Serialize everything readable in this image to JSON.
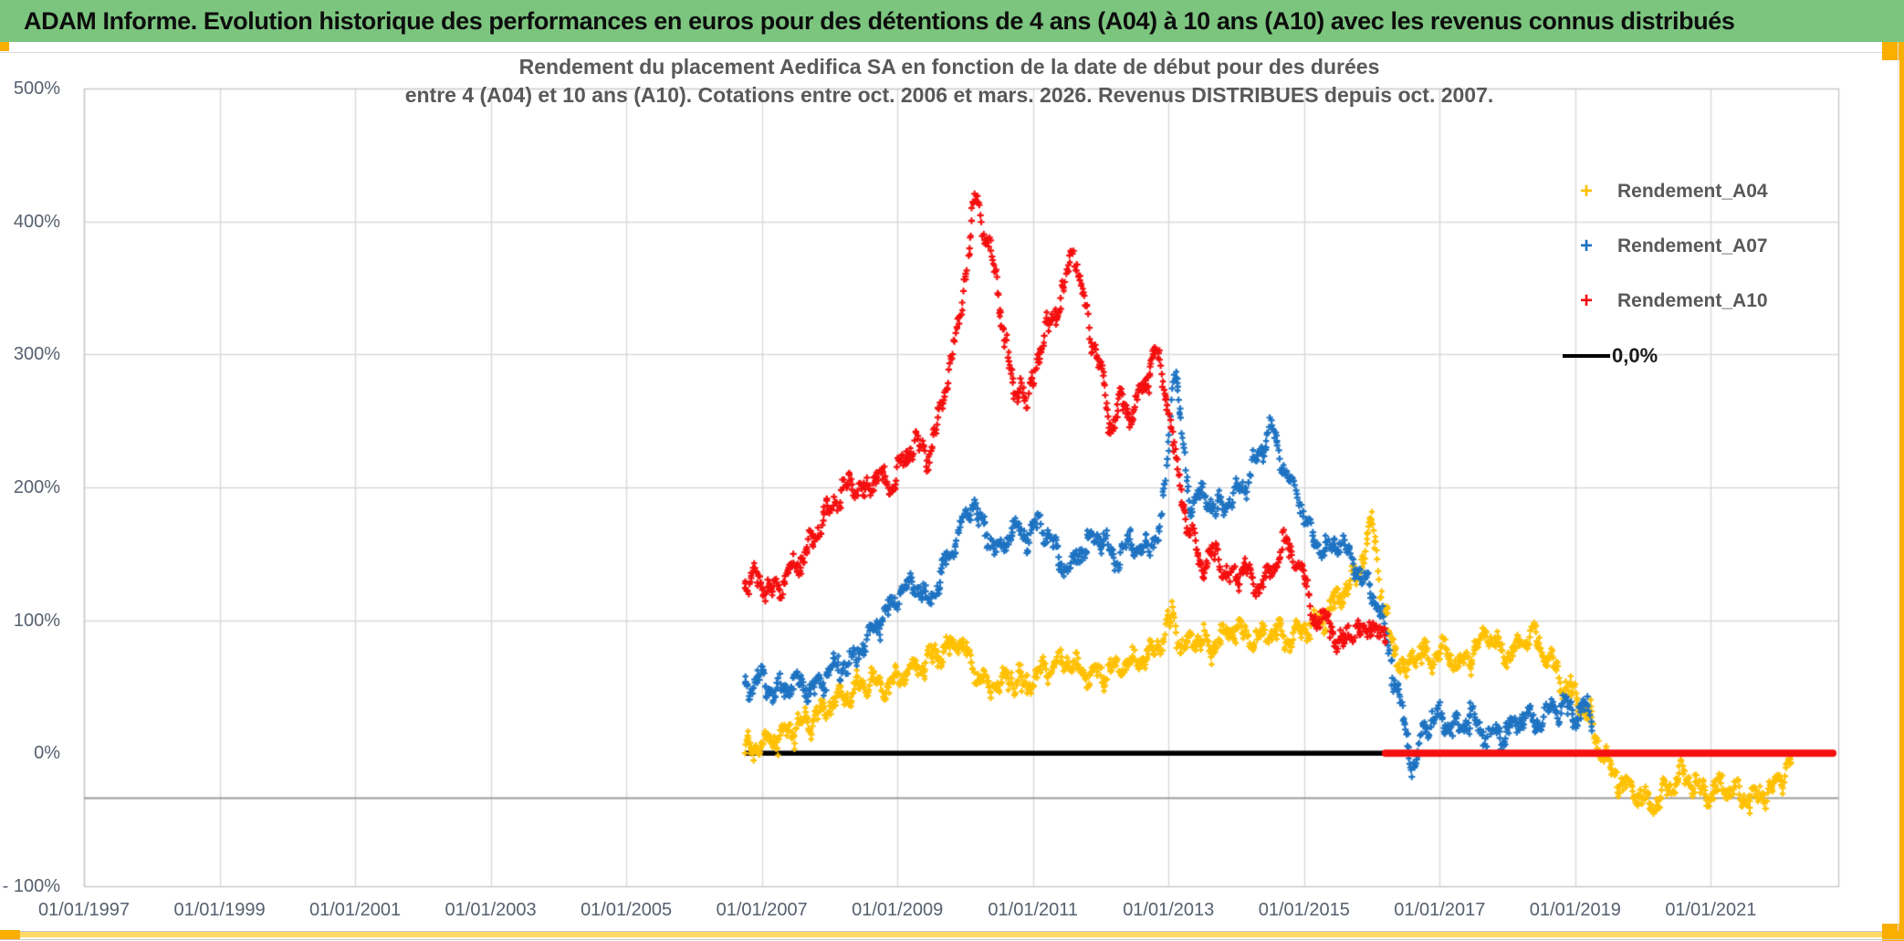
{
  "banner": {
    "title": "ADAM Informe. Evolution historique des performances en euros pour des détentions de 4 ans (A04) à 10 ans (A10) avec les revenus connus distribués"
  },
  "chart_data": {
    "type": "scatter",
    "title_line1": "Rendement du placement Aedifica SA en fonction de la date de début pour des durées",
    "title_line2": "entre 4 (A04) et 10 ans (A10). Cotations entre oct. 2006 et mars. 2026. Revenus DISTRIBUES depuis oct. 2007.",
    "x_tick_labels": [
      "01/01/1997",
      "01/01/1999",
      "01/01/2001",
      "01/01/2003",
      "01/01/2005",
      "01/01/2007",
      "01/01/2009",
      "01/01/2011",
      "01/01/2013",
      "01/01/2015",
      "01/01/2017",
      "01/01/2019",
      "01/01/2021"
    ],
    "x_tick_years": [
      1997,
      1999,
      2001,
      2003,
      2005,
      2007,
      2009,
      2011,
      2013,
      2015,
      2017,
      2019,
      2021
    ],
    "y_tick_labels": [
      "500%",
      "400%",
      "300%",
      "200%",
      "100%",
      "0%",
      "- 100%"
    ],
    "y_tick_values": [
      500,
      400,
      300,
      200,
      100,
      0,
      -100
    ],
    "x_range_years": [
      1997.0,
      2022.88
    ],
    "y_range_pct": [
      -100,
      500
    ],
    "grid": true,
    "legend_position": "right",
    "legend": [
      {
        "label": "Rendement_A04",
        "color": "#FFC000",
        "type": "marker"
      },
      {
        "label": "Rendement_A07",
        "color": "#1E73C2",
        "type": "marker"
      },
      {
        "label": "Rendement_A10",
        "color": "#F50F0F",
        "type": "marker"
      },
      {
        "label": "0,0%",
        "color": "#000000",
        "type": "line"
      }
    ],
    "series": [
      {
        "name": "Rendement_A04",
        "color": "#FFC000",
        "points": [
          [
            2006.75,
            3
          ],
          [
            2007.0,
            6
          ],
          [
            2007.3,
            14
          ],
          [
            2007.6,
            22
          ],
          [
            2007.9,
            30
          ],
          [
            2008.2,
            42
          ],
          [
            2008.45,
            52
          ],
          [
            2008.6,
            57
          ],
          [
            2008.8,
            50
          ],
          [
            2009.0,
            55
          ],
          [
            2009.3,
            65
          ],
          [
            2009.6,
            75
          ],
          [
            2009.9,
            85
          ],
          [
            2010.1,
            65
          ],
          [
            2010.35,
            48
          ],
          [
            2010.6,
            57
          ],
          [
            2010.9,
            52
          ],
          [
            2011.2,
            64
          ],
          [
            2011.5,
            70
          ],
          [
            2011.8,
            58
          ],
          [
            2012.1,
            62
          ],
          [
            2012.4,
            67
          ],
          [
            2012.7,
            73
          ],
          [
            2012.9,
            85
          ],
          [
            2013.05,
            103
          ],
          [
            2013.2,
            78
          ],
          [
            2013.4,
            88
          ],
          [
            2013.6,
            79
          ],
          [
            2013.8,
            87
          ],
          [
            2014.0,
            94
          ],
          [
            2014.25,
            84
          ],
          [
            2014.5,
            92
          ],
          [
            2014.75,
            86
          ],
          [
            2015.0,
            93
          ],
          [
            2015.25,
            100
          ],
          [
            2015.5,
            115
          ],
          [
            2015.8,
            138
          ],
          [
            2016.02,
            172
          ],
          [
            2016.15,
            115
          ],
          [
            2016.3,
            82
          ],
          [
            2016.5,
            60
          ],
          [
            2016.65,
            80
          ],
          [
            2016.85,
            70
          ],
          [
            2017.0,
            78
          ],
          [
            2017.3,
            66
          ],
          [
            2017.55,
            80
          ],
          [
            2017.7,
            92
          ],
          [
            2017.95,
            72
          ],
          [
            2018.15,
            80
          ],
          [
            2018.35,
            90
          ],
          [
            2018.6,
            72
          ],
          [
            2018.85,
            50
          ],
          [
            2019.05,
            40
          ],
          [
            2019.25,
            20
          ],
          [
            2019.45,
            -5
          ],
          [
            2019.7,
            -22
          ],
          [
            2019.95,
            -32
          ],
          [
            2020.15,
            -40
          ],
          [
            2020.35,
            -28
          ],
          [
            2020.55,
            -16
          ],
          [
            2020.75,
            -24
          ],
          [
            2020.95,
            -32
          ],
          [
            2021.15,
            -25
          ],
          [
            2021.4,
            -30
          ],
          [
            2021.65,
            -34
          ],
          [
            2021.85,
            -30
          ],
          [
            2022.05,
            -15
          ],
          [
            2022.2,
            -5
          ]
        ]
      },
      {
        "name": "Rendement_A07",
        "color": "#1E73C2",
        "points": [
          [
            2006.75,
            50
          ],
          [
            2007.0,
            55
          ],
          [
            2007.2,
            46
          ],
          [
            2007.45,
            52
          ],
          [
            2007.7,
            48
          ],
          [
            2008.0,
            60
          ],
          [
            2008.3,
            68
          ],
          [
            2008.6,
            88
          ],
          [
            2008.85,
            108
          ],
          [
            2009.05,
            120
          ],
          [
            2009.25,
            130
          ],
          [
            2009.45,
            112
          ],
          [
            2009.7,
            142
          ],
          [
            2009.95,
            172
          ],
          [
            2010.1,
            190
          ],
          [
            2010.3,
            168
          ],
          [
            2010.5,
            150
          ],
          [
            2010.7,
            170
          ],
          [
            2010.9,
            162
          ],
          [
            2011.1,
            175
          ],
          [
            2011.35,
            150
          ],
          [
            2011.55,
            140
          ],
          [
            2011.8,
            158
          ],
          [
            2012.0,
            165
          ],
          [
            2012.2,
            146
          ],
          [
            2012.45,
            158
          ],
          [
            2012.7,
            152
          ],
          [
            2012.9,
            175
          ],
          [
            2013.0,
            230
          ],
          [
            2013.08,
            298
          ],
          [
            2013.18,
            250
          ],
          [
            2013.3,
            190
          ],
          [
            2013.5,
            196
          ],
          [
            2013.7,
            182
          ],
          [
            2013.9,
            192
          ],
          [
            2014.1,
            200
          ],
          [
            2014.3,
            220
          ],
          [
            2014.5,
            247
          ],
          [
            2014.7,
            215
          ],
          [
            2014.9,
            195
          ],
          [
            2015.1,
            165
          ],
          [
            2015.3,
            150
          ],
          [
            2015.55,
            160
          ],
          [
            2015.75,
            140
          ],
          [
            2015.95,
            125
          ],
          [
            2016.1,
            110
          ],
          [
            2016.25,
            80
          ],
          [
            2016.4,
            40
          ],
          [
            2016.55,
            5
          ],
          [
            2016.63,
            -15
          ],
          [
            2016.75,
            15
          ],
          [
            2016.9,
            30
          ],
          [
            2017.05,
            25
          ],
          [
            2017.25,
            18
          ],
          [
            2017.45,
            28
          ],
          [
            2017.65,
            15
          ],
          [
            2017.85,
            12
          ],
          [
            2018.05,
            20
          ],
          [
            2018.25,
            28
          ],
          [
            2018.45,
            24
          ],
          [
            2018.65,
            32
          ],
          [
            2018.85,
            36
          ],
          [
            2019.0,
            30
          ],
          [
            2019.15,
            35
          ],
          [
            2019.25,
            25
          ]
        ]
      },
      {
        "name": "Rendement_A10",
        "color": "#F50F0F",
        "points": [
          [
            2006.75,
            127
          ],
          [
            2006.95,
            132
          ],
          [
            2007.15,
            120
          ],
          [
            2007.4,
            135
          ],
          [
            2007.65,
            152
          ],
          [
            2007.9,
            175
          ],
          [
            2008.1,
            192
          ],
          [
            2008.3,
            203
          ],
          [
            2008.5,
            195
          ],
          [
            2008.7,
            210
          ],
          [
            2008.9,
            200
          ],
          [
            2009.1,
            222
          ],
          [
            2009.3,
            235
          ],
          [
            2009.45,
            222
          ],
          [
            2009.6,
            250
          ],
          [
            2009.75,
            285
          ],
          [
            2009.9,
            320
          ],
          [
            2010.0,
            360
          ],
          [
            2010.1,
            400
          ],
          [
            2010.17,
            420
          ],
          [
            2010.28,
            392
          ],
          [
            2010.4,
            370
          ],
          [
            2010.5,
            345
          ],
          [
            2010.62,
            300
          ],
          [
            2010.72,
            268
          ],
          [
            2010.82,
            282
          ],
          [
            2010.92,
            258
          ],
          [
            2011.05,
            295
          ],
          [
            2011.15,
            312
          ],
          [
            2011.3,
            330
          ],
          [
            2011.45,
            345
          ],
          [
            2011.6,
            383
          ],
          [
            2011.72,
            345
          ],
          [
            2011.85,
            315
          ],
          [
            2012.0,
            290
          ],
          [
            2012.15,
            245
          ],
          [
            2012.3,
            265
          ],
          [
            2012.45,
            252
          ],
          [
            2012.6,
            272
          ],
          [
            2012.75,
            295
          ],
          [
            2012.85,
            300
          ],
          [
            2013.0,
            258
          ],
          [
            2013.12,
            215
          ],
          [
            2013.3,
            168
          ],
          [
            2013.5,
            140
          ],
          [
            2013.7,
            152
          ],
          [
            2013.9,
            130
          ],
          [
            2014.1,
            142
          ],
          [
            2014.3,
            124
          ],
          [
            2014.5,
            136
          ],
          [
            2014.7,
            158
          ],
          [
            2014.9,
            148
          ],
          [
            2015.05,
            122
          ],
          [
            2015.2,
            96
          ],
          [
            2015.35,
            106
          ],
          [
            2015.5,
            76
          ],
          [
            2015.65,
            95
          ],
          [
            2015.8,
            88
          ],
          [
            2015.95,
            100
          ],
          [
            2016.1,
            86
          ],
          [
            2016.2,
            95
          ]
        ]
      }
    ],
    "zero_lines": [
      {
        "name": "0,0%",
        "color": "#000000",
        "from": 2006.75,
        "to": 2016.2,
        "value": 0
      },
      {
        "name": "A10-zero-extension",
        "color": "#F50F0F",
        "from": 2016.2,
        "to": 2022.8,
        "value": 0
      }
    ]
  }
}
